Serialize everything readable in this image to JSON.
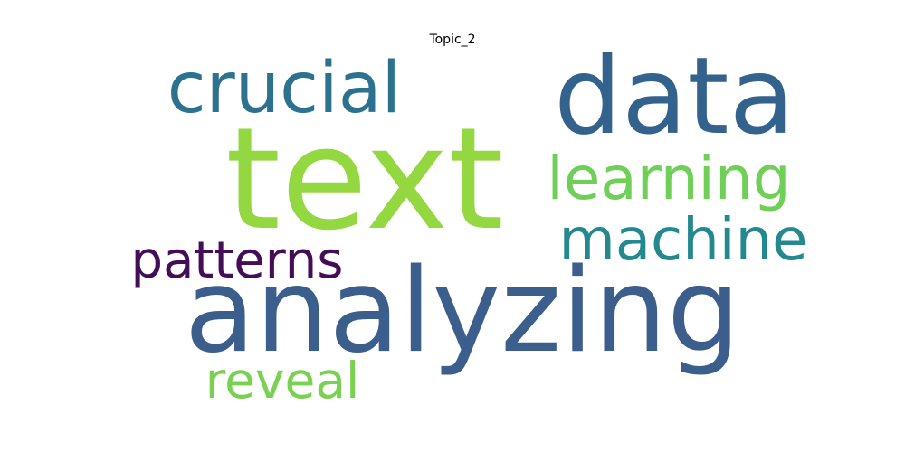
{
  "title": "Topic_2",
  "words": [
    {
      "text": "text",
      "color": "#93d741"
    },
    {
      "text": "analyzing",
      "color": "#3b5e8d"
    },
    {
      "text": "data",
      "color": "#33638d"
    },
    {
      "text": "crucial",
      "color": "#2c728e"
    },
    {
      "text": "learning",
      "color": "#6fcf57"
    },
    {
      "text": "machine",
      "color": "#23898e"
    },
    {
      "text": "patterns",
      "color": "#440e57"
    },
    {
      "text": "reveal",
      "color": "#7ad151"
    }
  ]
}
